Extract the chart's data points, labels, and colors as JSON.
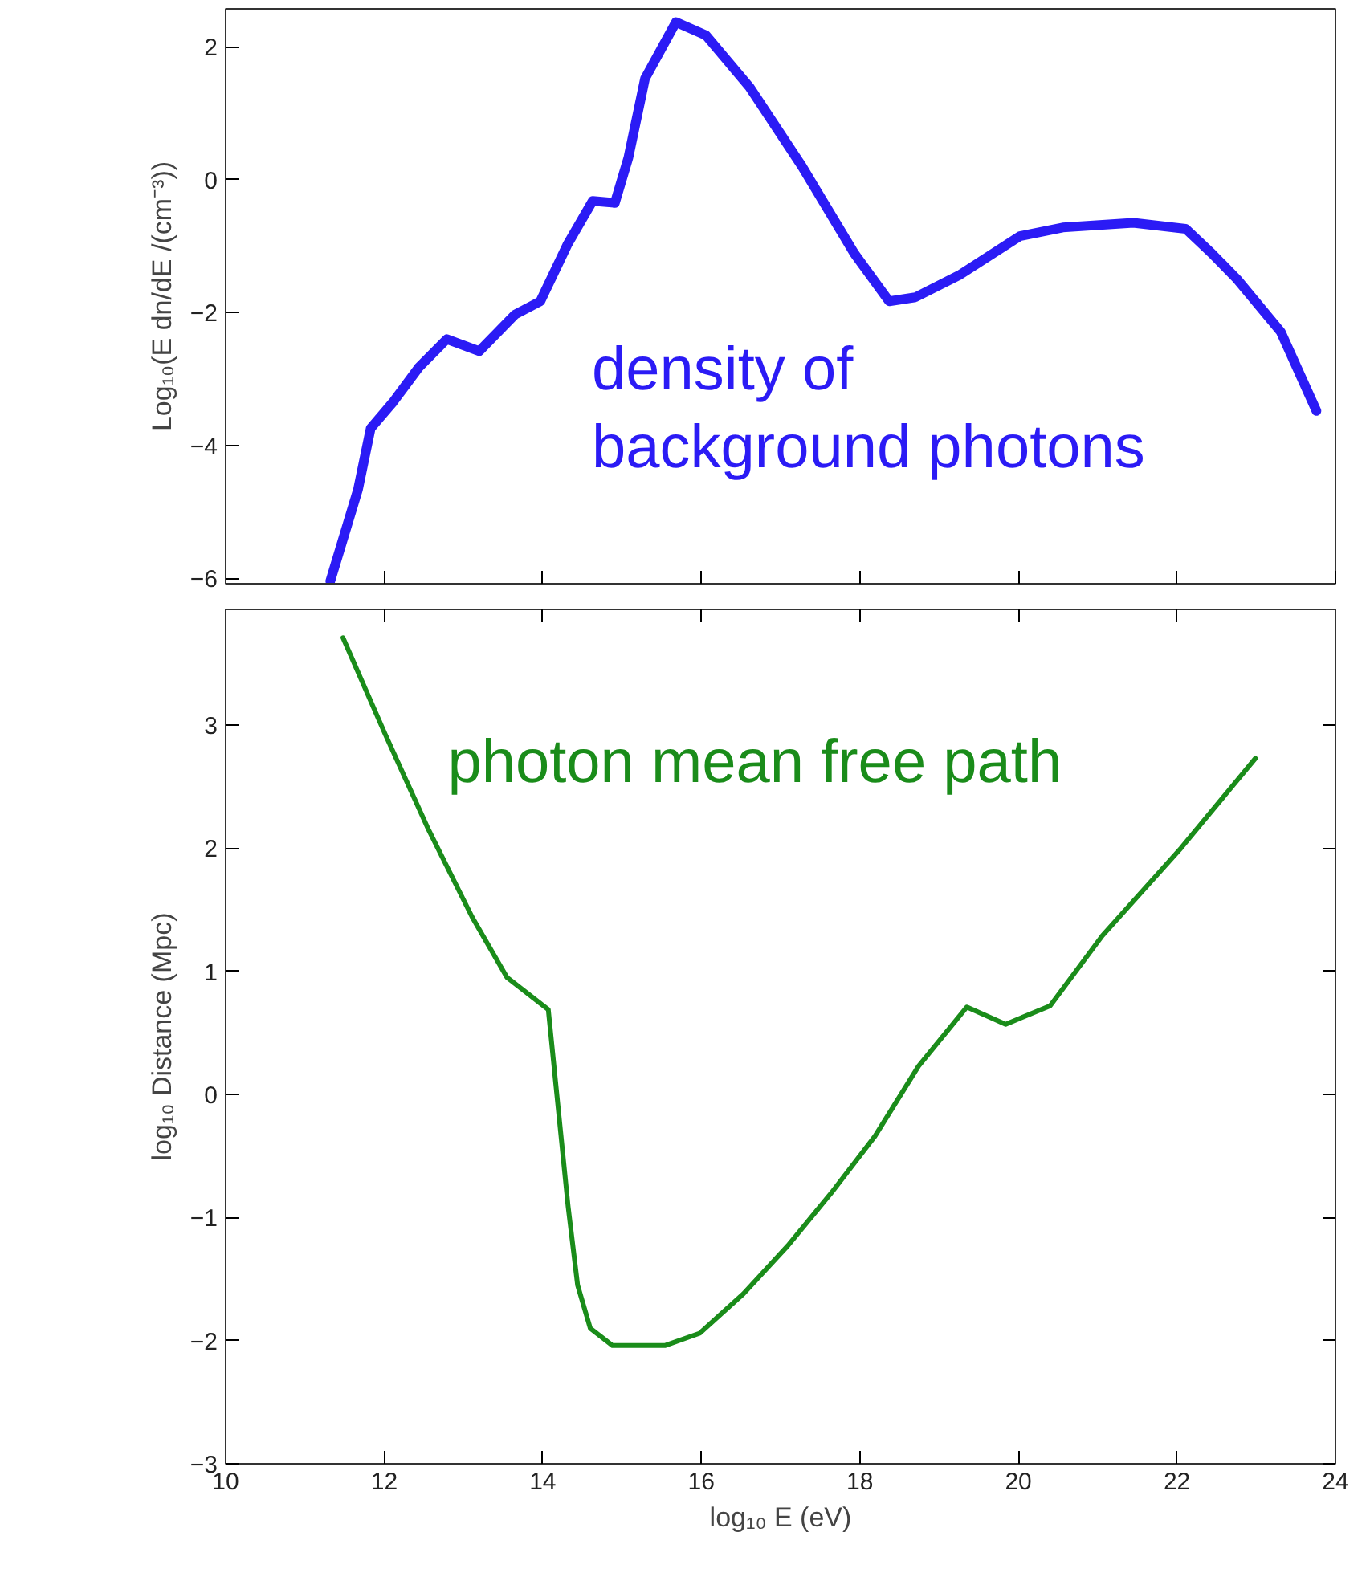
{
  "chart_data": [
    {
      "type": "line",
      "ylabel": "Log₁₀(E dn/dE /(cm⁻³))",
      "xlim": [
        10,
        24
      ],
      "ylim": [
        -6.08,
        2.57
      ],
      "xticks": [
        10,
        12,
        14,
        16,
        18,
        20,
        22,
        24
      ],
      "yticks": [
        -6,
        -4,
        -2,
        0,
        2
      ],
      "tick_labels": "y",
      "grid": false,
      "series": [
        {
          "name": "density of\nbackground photons",
          "color": "#2b1bf5",
          "x": [
            11.32,
            11.67,
            11.83,
            12.11,
            12.44,
            12.79,
            13.2,
            13.65,
            13.97,
            14.31,
            14.63,
            14.91,
            15.08,
            15.29,
            15.68,
            16.06,
            16.61,
            17.27,
            17.93,
            18.37,
            18.7,
            19.25,
            20.02,
            20.56,
            21.45,
            22.11,
            22.44,
            22.76,
            23.31,
            23.76
          ],
          "values": [
            -6.04,
            -4.66,
            -3.74,
            -3.35,
            -2.82,
            -2.4,
            -2.58,
            -2.03,
            -1.83,
            -0.98,
            -0.32,
            -0.35,
            0.33,
            1.52,
            2.37,
            2.17,
            1.39,
            0.2,
            -1.11,
            -1.83,
            -1.77,
            -1.44,
            -0.85,
            -0.72,
            -0.65,
            -0.74,
            -1.11,
            -1.5,
            -2.29,
            -3.48
          ]
        }
      ]
    },
    {
      "type": "line",
      "xlabel": "log₁₀ E (eV)",
      "ylabel": "log₁₀ Distance (Mpc)",
      "xlim": [
        10,
        24
      ],
      "ylim": [
        -3,
        3.94
      ],
      "xticks": [
        10,
        12,
        14,
        16,
        18,
        20,
        22,
        24
      ],
      "yticks": [
        -3,
        -2,
        -1,
        0,
        1,
        2,
        3
      ],
      "grid": false,
      "series": [
        {
          "name": "photon mean free path",
          "color": "#1a8c1a",
          "x": [
            11.48,
            12.01,
            12.56,
            13.11,
            13.55,
            14.07,
            14.32,
            14.44,
            14.6,
            14.88,
            15.54,
            15.98,
            16.53,
            17.09,
            17.64,
            18.19,
            18.74,
            19.35,
            19.84,
            20.4,
            21.06,
            22.05,
            22.99
          ],
          "values": [
            3.71,
            2.93,
            2.15,
            1.44,
            0.95,
            0.69,
            -0.91,
            -1.55,
            -1.9,
            -2.04,
            -2.04,
            -1.94,
            -1.62,
            -1.23,
            -0.8,
            -0.34,
            0.23,
            0.71,
            0.57,
            0.72,
            1.29,
            2.0,
            2.73
          ]
        }
      ]
    }
  ]
}
